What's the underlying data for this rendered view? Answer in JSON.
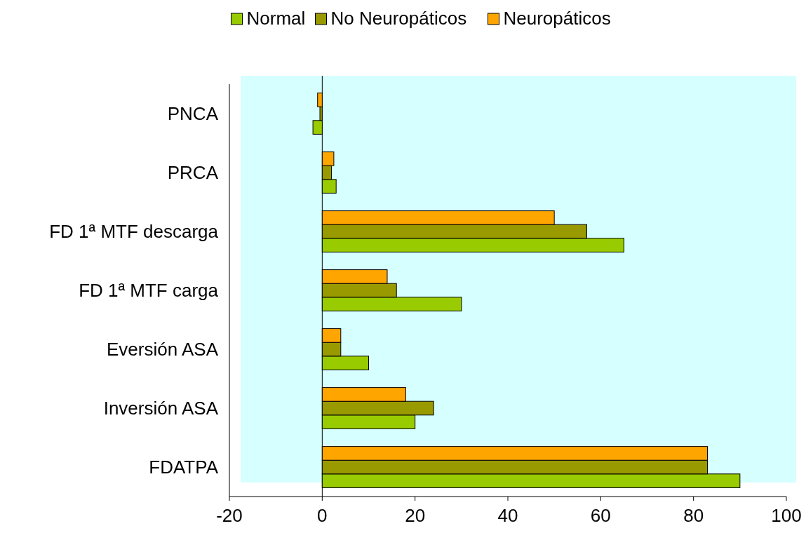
{
  "chart_data": {
    "type": "bar",
    "orientation": "horizontal",
    "categories": [
      "PNCA",
      "PRCA",
      "FD 1ª MTF descarga",
      "FD 1ª MTF carga",
      "Eversión ASA",
      "Inversión ASA",
      "FDATPA"
    ],
    "series": [
      {
        "name": "Normal",
        "color": "#99cc00",
        "values": [
          -2,
          3,
          65,
          30,
          10,
          20,
          90
        ]
      },
      {
        "name": "No Neuropáticos",
        "color": "#999900",
        "values": [
          -0.5,
          2,
          57,
          16,
          4,
          24,
          83
        ]
      },
      {
        "name": "Neuropáticos",
        "color": "#ffa500",
        "values": [
          -1,
          2.5,
          50,
          14,
          4,
          18,
          83
        ]
      }
    ],
    "xlim": [
      -20,
      100
    ],
    "xticks": [
      -20,
      0,
      20,
      40,
      60,
      80,
      100
    ],
    "ref_lines": [
      {
        "axis": "x",
        "value": 0
      }
    ],
    "legend": "top"
  }
}
